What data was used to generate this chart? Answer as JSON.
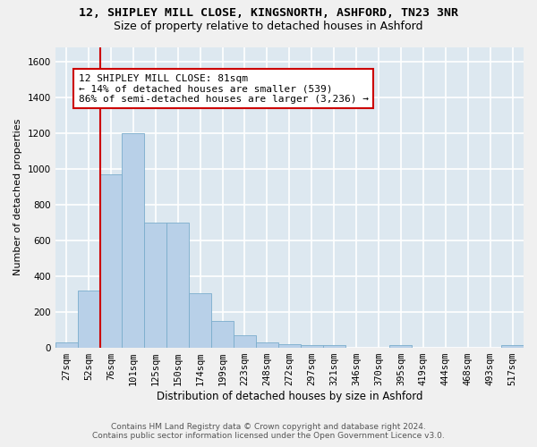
{
  "title1": "12, SHIPLEY MILL CLOSE, KINGSNORTH, ASHFORD, TN23 3NR",
  "title2": "Size of property relative to detached houses in Ashford",
  "xlabel": "Distribution of detached houses by size in Ashford",
  "ylabel": "Number of detached properties",
  "footer1": "Contains HM Land Registry data © Crown copyright and database right 2024.",
  "footer2": "Contains public sector information licensed under the Open Government Licence v3.0.",
  "categories": [
    "27sqm",
    "52sqm",
    "76sqm",
    "101sqm",
    "125sqm",
    "150sqm",
    "174sqm",
    "199sqm",
    "223sqm",
    "248sqm",
    "272sqm",
    "297sqm",
    "321sqm",
    "346sqm",
    "370sqm",
    "395sqm",
    "419sqm",
    "444sqm",
    "468sqm",
    "493sqm",
    "517sqm"
  ],
  "values": [
    30,
    320,
    970,
    1200,
    700,
    700,
    305,
    150,
    70,
    30,
    20,
    15,
    15,
    0,
    0,
    15,
    0,
    0,
    0,
    0,
    15
  ],
  "bar_color": "#b8d0e8",
  "bar_edge_color": "#7aadcc",
  "vline_color": "#cc0000",
  "vline_x_idx": 2,
  "annotation_text": "12 SHIPLEY MILL CLOSE: 81sqm\n← 14% of detached houses are smaller (539)\n86% of semi-detached houses are larger (3,236) →",
  "annotation_box_color": "#ffffff",
  "annotation_box_edge": "#cc0000",
  "ylim": [
    0,
    1680
  ],
  "yticks": [
    0,
    200,
    400,
    600,
    800,
    1000,
    1200,
    1400,
    1600
  ],
  "bg_color": "#dde8f0",
  "grid_color": "#ffffff",
  "fig_bg_color": "#f0f0f0",
  "title1_fontsize": 9.5,
  "title2_fontsize": 9,
  "xlabel_fontsize": 8.5,
  "ylabel_fontsize": 8,
  "tick_fontsize": 7.5,
  "footer_fontsize": 6.5,
  "annot_fontsize": 8
}
